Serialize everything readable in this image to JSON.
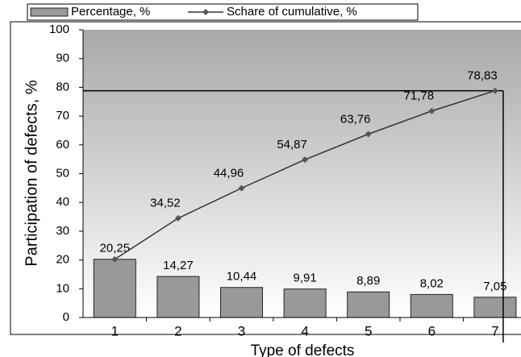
{
  "chart_data": {
    "type": "pareto",
    "y_label": "Participation of defects, %",
    "x_label": "Type of defects",
    "categories": [
      "1",
      "2",
      "3",
      "4",
      "5",
      "6",
      "7"
    ],
    "series": [
      {
        "name": "Percentage, %",
        "type": "bar",
        "color": "#999999",
        "values": [
          20.25,
          14.27,
          10.44,
          9.91,
          8.89,
          8.02,
          7.05
        ],
        "value_labels": [
          "20,25",
          "14,27",
          "10,44",
          "9,91",
          "8,89",
          "8,02",
          "7,05"
        ]
      },
      {
        "name": "Schare of cumulative, %",
        "type": "line",
        "color": "#333333",
        "values": [
          20.25,
          34.52,
          44.96,
          54.87,
          63.76,
          71.78,
          78.83
        ],
        "value_labels": [
          null,
          "34,52",
          "44,96",
          "54,87",
          "63,76",
          "71,78",
          "78,83"
        ]
      }
    ],
    "ylim": [
      0,
      100
    ],
    "yticks": [
      0,
      10,
      20,
      30,
      40,
      50,
      60,
      70,
      80,
      90,
      100
    ]
  }
}
